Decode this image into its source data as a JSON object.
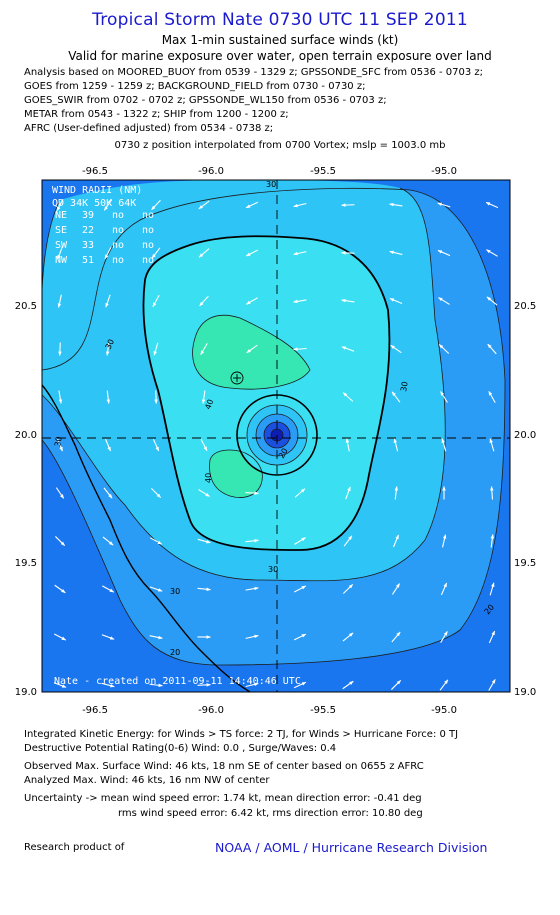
{
  "header": {
    "title": "Tropical Storm Nate 0730 UTC 11 SEP 2011",
    "subtitle1": "Max 1-min sustained surface winds (kt)",
    "subtitle2": "Valid for marine exposure over water, open terrain exposure over land"
  },
  "analysis_lines": [
    "Analysis based on MOORED_BUOY from 0539 - 1329 z; GPSSONDE_SFC from 0536 - 0703 z;",
    "GOES from 1259 - 1259 z; BACKGROUND_FIELD from 0730 - 0730 z;",
    "GOES_SWIR from 0702 - 0702 z; GPSSONDE_WL150 from 0536 - 0703 z;",
    "METAR from 0543 - 1322 z; SHIP from 1200 - 1200 z;",
    "AFRC (User-defined adjusted) from 0534 - 0738 z;"
  ],
  "vortex_line": "0730 z position interpolated from 0700 Vortex; mslp = 1003.0 mb",
  "map": {
    "x_ticks": [
      "-96.5",
      "-96.0",
      "-95.5",
      "-95.0"
    ],
    "y_ticks": [
      "20.5",
      "20.0",
      "19.5",
      "19.0"
    ],
    "contour_labels": [
      "30",
      "30",
      "30",
      "30",
      "30",
      "30",
      "40",
      "40",
      "20",
      "20",
      "20"
    ],
    "wind_radii": {
      "title": "WIND RADII (NM)",
      "header": "QD 34K 50K 64K",
      "rows": [
        {
          "q": "NE",
          "k34": "39",
          "k50": "no",
          "k64": "no"
        },
        {
          "q": "SE",
          "k34": "22",
          "k50": "no",
          "k64": "no"
        },
        {
          "q": "SW",
          "k34": "33",
          "k50": "no",
          "k64": "no"
        },
        {
          "q": "NW",
          "k34": "51",
          "k50": "no",
          "k64": "no"
        }
      ]
    },
    "created": "Nate - created on 2011-09-11 14:40:46 UTC",
    "colors": {
      "band_low": "#1a76ee",
      "band_20": "#2a9cf6",
      "band_30": "#2fc4f6",
      "band_34": "#3ae0f2",
      "band_40": "#36e7b4",
      "core_low": "#1a4fe0",
      "core_inner": "#0c1db0"
    }
  },
  "footer": {
    "line1": "Integrated Kinetic Energy:  for Winds > TS force: 2 TJ,  for Winds > Hurricane Force: 0 TJ",
    "line2": "Destructive Potential Rating(0-6)   Wind: 0.0 , Surge/Waves: 0.4",
    "line3": "Observed Max. Surface Wind: 46 kts, 18 nm SE of center based on 0655 z AFRC",
    "line4": "Analyzed Max. Wind: 46 kts, 16 nm NW of center",
    "line5": "Uncertainty -> mean wind speed error: 1.74 kt,   mean direction error:  -0.41 deg",
    "line6": "rms wind speed error: 6.42 kt,   rms direction error: 10.80 deg",
    "research": "Research product of",
    "credit": "NOAA / AOML / Hurricane Research Division"
  }
}
